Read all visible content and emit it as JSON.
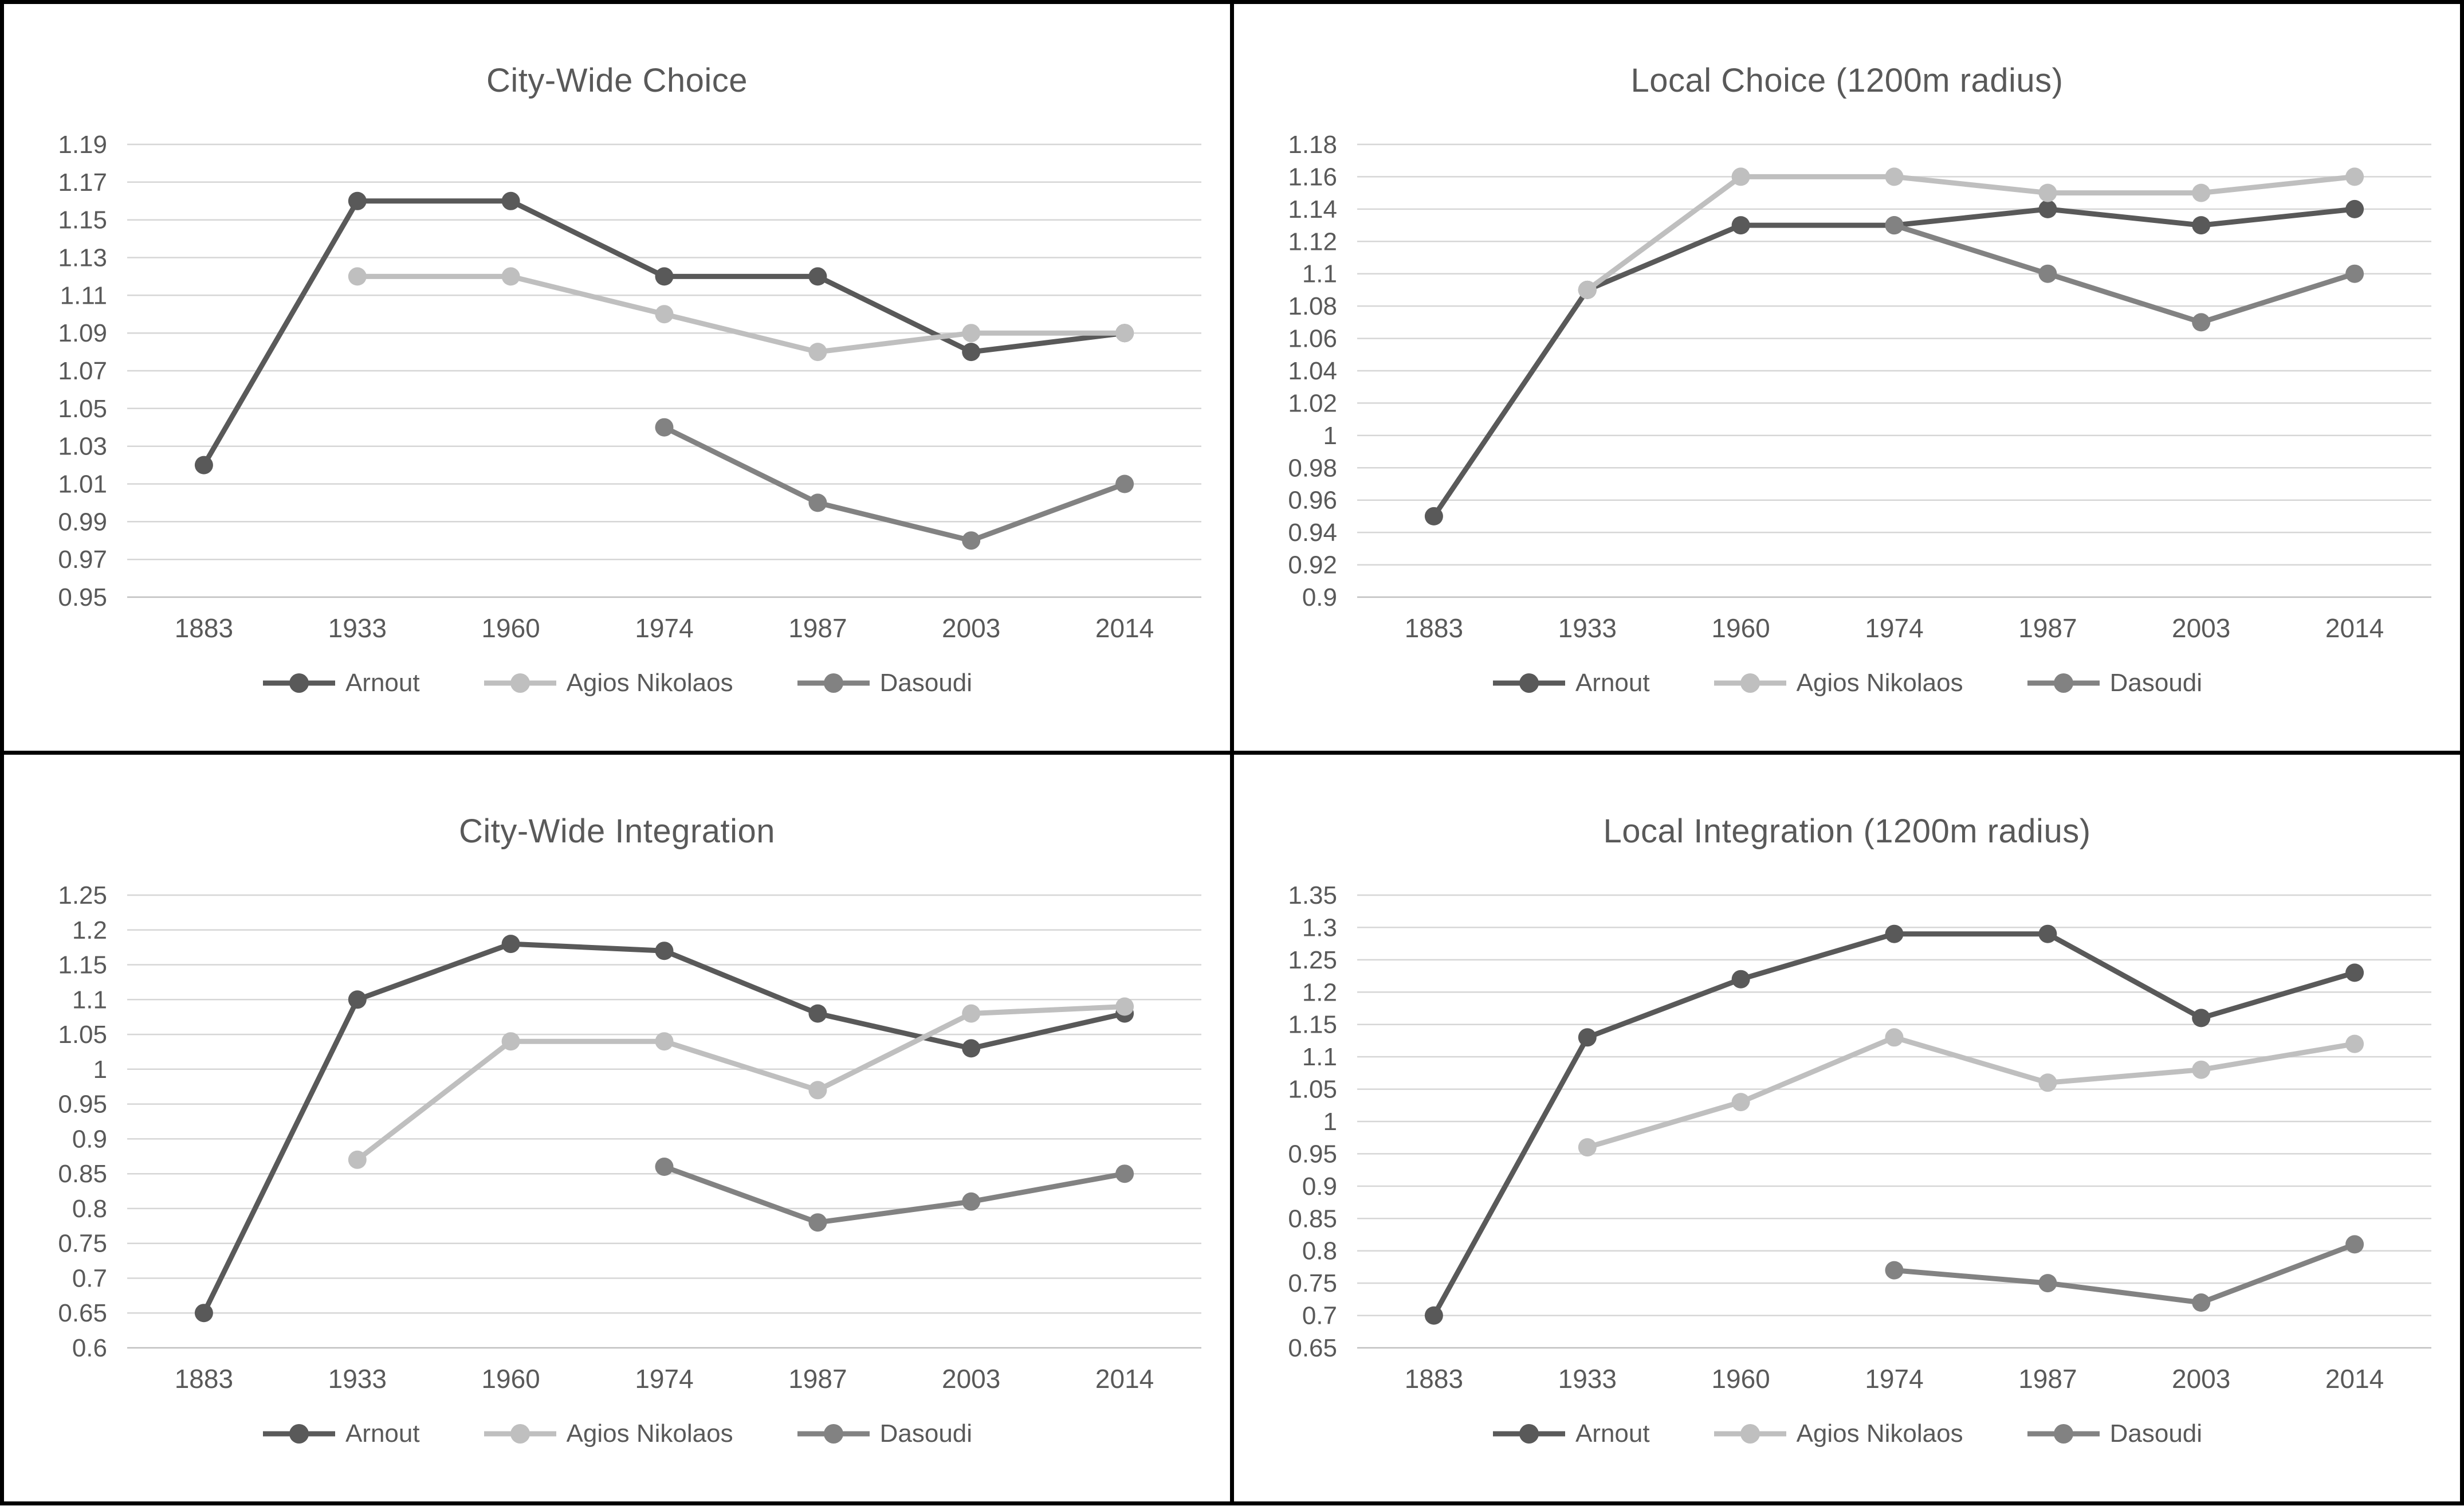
{
  "page": {
    "background": "#ffffff",
    "panel_border_color": "#000000"
  },
  "colors": {
    "arnout": "#595959",
    "agios_nikolaos": "#bfbfbf",
    "dasoudi": "#828282",
    "gridline": "#d6d6d6",
    "axis_line": "#c0c0c0",
    "axis_text": "#595959",
    "title_text": "#595959"
  },
  "chart_data": [
    {
      "type": "line",
      "title": "City-Wide Choice",
      "categories": [
        "1883",
        "1933",
        "1960",
        "1974",
        "1987",
        "2003",
        "2014"
      ],
      "yticks": [
        "1.19",
        "1.17",
        "1.15",
        "1.13",
        "1.11",
        "1.09",
        "1.07",
        "1.05",
        "1.03",
        "1.01",
        "0.99",
        "0.97",
        "0.95"
      ],
      "ylim": [
        0.95,
        1.19
      ],
      "ytick_step": 0.02,
      "grid": true,
      "legend_position": "bottom",
      "series": [
        {
          "name": "Arnout",
          "color": "#595959",
          "values": [
            1.02,
            1.16,
            1.16,
            1.12,
            1.12,
            1.08,
            1.09
          ]
        },
        {
          "name": "Agios Nikolaos",
          "color": "#bfbfbf",
          "values": [
            null,
            1.12,
            1.12,
            1.1,
            1.08,
            1.09,
            1.09
          ]
        },
        {
          "name": "Dasoudi",
          "color": "#828282",
          "values": [
            null,
            null,
            null,
            1.04,
            1.0,
            0.98,
            1.01
          ]
        }
      ]
    },
    {
      "type": "line",
      "title": "Local Choice (1200m radius)",
      "categories": [
        "1883",
        "1933",
        "1960",
        "1974",
        "1987",
        "2003",
        "2014"
      ],
      "yticks": [
        "1.18",
        "1.16",
        "1.14",
        "1.12",
        "1.1",
        "1.08",
        "1.06",
        "1.04",
        "1.02",
        "1",
        "0.98",
        "0.96",
        "0.94",
        "0.92",
        "0.9"
      ],
      "ylim": [
        0.9,
        1.18
      ],
      "ytick_step": 0.02,
      "grid": true,
      "legend_position": "bottom",
      "series": [
        {
          "name": "Arnout",
          "color": "#595959",
          "values": [
            0.95,
            1.09,
            1.13,
            1.13,
            1.14,
            1.13,
            1.14
          ]
        },
        {
          "name": "Agios Nikolaos",
          "color": "#bfbfbf",
          "values": [
            null,
            1.09,
            1.16,
            1.16,
            1.15,
            1.15,
            1.16
          ]
        },
        {
          "name": "Dasoudi",
          "color": "#828282",
          "values": [
            null,
            null,
            null,
            1.13,
            1.1,
            1.07,
            1.1
          ]
        }
      ]
    },
    {
      "type": "line",
      "title": "City-Wide Integration",
      "categories": [
        "1883",
        "1933",
        "1960",
        "1974",
        "1987",
        "2003",
        "2014"
      ],
      "yticks": [
        "1.25",
        "1.2",
        "1.15",
        "1.1",
        "1.05",
        "1",
        "0.95",
        "0.9",
        "0.85",
        "0.8",
        "0.75",
        "0.7",
        "0.65",
        "0.6"
      ],
      "ylim": [
        0.6,
        1.25
      ],
      "ytick_step": 0.05,
      "grid": true,
      "legend_position": "bottom",
      "series": [
        {
          "name": "Arnout",
          "color": "#595959",
          "values": [
            0.65,
            1.1,
            1.18,
            1.17,
            1.08,
            1.03,
            1.08
          ]
        },
        {
          "name": "Agios Nikolaos",
          "color": "#bfbfbf",
          "values": [
            null,
            0.87,
            1.04,
            1.04,
            0.97,
            1.08,
            1.09
          ]
        },
        {
          "name": "Dasoudi",
          "color": "#828282",
          "values": [
            null,
            null,
            null,
            0.86,
            0.78,
            0.81,
            0.85
          ]
        }
      ]
    },
    {
      "type": "line",
      "title": "Local Integration (1200m radius)",
      "categories": [
        "1883",
        "1933",
        "1960",
        "1974",
        "1987",
        "2003",
        "2014"
      ],
      "yticks": [
        "1.35",
        "1.3",
        "1.25",
        "1.2",
        "1.15",
        "1.1",
        "1.05",
        "1",
        "0.95",
        "0.9",
        "0.85",
        "0.8",
        "0.75",
        "0.7",
        "0.65"
      ],
      "ylim": [
        0.65,
        1.35
      ],
      "ytick_step": 0.05,
      "grid": true,
      "legend_position": "bottom",
      "series": [
        {
          "name": "Arnout",
          "color": "#595959",
          "values": [
            0.7,
            1.13,
            1.22,
            1.29,
            1.29,
            1.16,
            1.23
          ]
        },
        {
          "name": "Agios Nikolaos",
          "color": "#bfbfbf",
          "values": [
            null,
            0.96,
            1.03,
            1.13,
            1.06,
            1.08,
            1.12
          ]
        },
        {
          "name": "Dasoudi",
          "color": "#828282",
          "values": [
            null,
            null,
            null,
            0.77,
            0.75,
            0.72,
            0.81
          ]
        }
      ]
    }
  ]
}
